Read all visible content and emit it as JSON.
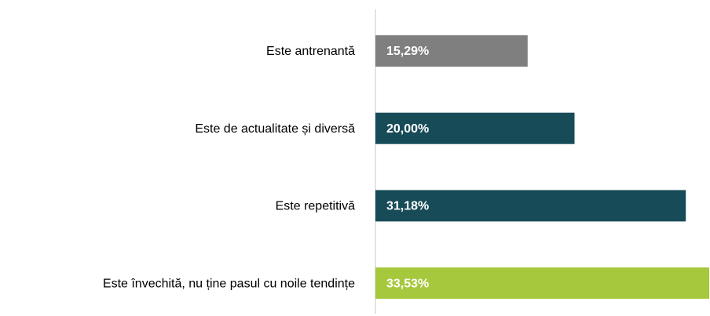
{
  "chart_data": {
    "type": "barh",
    "categories": [
      "Este antrenantă",
      "Este de actualitate și diversă",
      "Este repetitivă",
      "Este învechită, nu ține pasul cu noile tendințe"
    ],
    "values": [
      15.29,
      20.0,
      31.18,
      33.53
    ],
    "value_labels": [
      "15,29%",
      "20,00%",
      "31,18%",
      "33,53%"
    ],
    "colors": [
      "#7f7f7f",
      "#174b57",
      "#174b57",
      "#a6c83c"
    ]
  }
}
